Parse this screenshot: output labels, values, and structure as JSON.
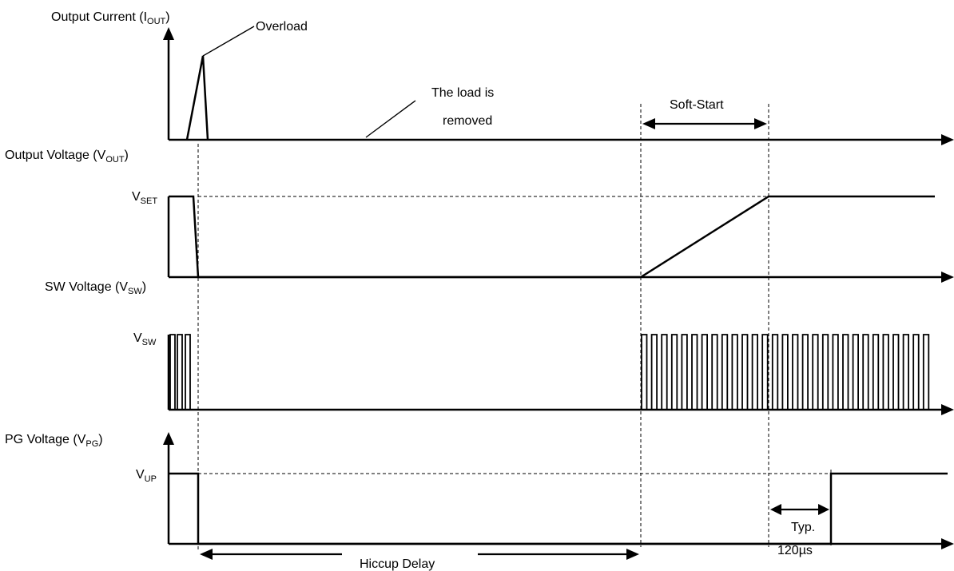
{
  "plots": {
    "current": {
      "label": "Output Current (I",
      "sub": "OUT",
      "close": ")"
    },
    "voltage": {
      "label": "Output Voltage (V",
      "sub": "OUT",
      "close": ")"
    },
    "sw": {
      "label": "SW  Voltage  (V",
      "sub": "SW",
      "close": ")"
    },
    "pg": {
      "label": "PG Voltage (V",
      "sub": "PG",
      "close": ")"
    }
  },
  "levels": {
    "vset": {
      "main": "V",
      "sub": "SET"
    },
    "vsw": {
      "main": "V",
      "sub": "SW"
    },
    "vup": {
      "main": "V",
      "sub": "UP"
    }
  },
  "annotations": {
    "overload": "Overload",
    "load_removed_line1": "The load is",
    "load_removed_line2": "removed",
    "soft_start": "Soft-Start",
    "typ_line1": "Typ.",
    "typ_line2": "120µs",
    "hiccup_delay": "Hiccup Delay"
  }
}
